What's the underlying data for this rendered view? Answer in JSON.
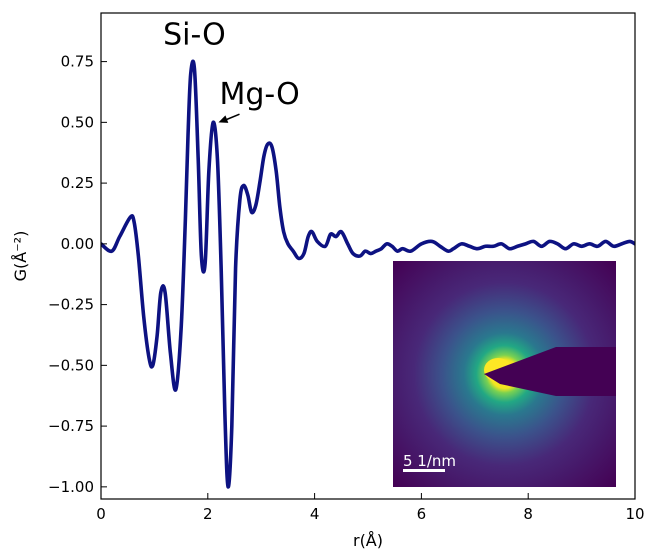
{
  "chart_data": {
    "type": "line",
    "xlabel": "r(Å)",
    "ylabel": "G(Å⁻²)",
    "xlim": [
      0,
      10
    ],
    "ylim": [
      -1.05,
      0.95
    ],
    "xticks": [
      "0",
      "2",
      "4",
      "6",
      "8",
      "10"
    ],
    "yticks": [
      "0.75",
      "0.50",
      "0.25",
      "0.00",
      "−0.25",
      "−0.50",
      "−0.75",
      "−1.00"
    ],
    "grid": false,
    "line_color": "#0d1282",
    "series": [
      {
        "x": [
          0,
          0.2,
          0.35,
          0.55,
          0.62,
          0.7,
          0.8,
          0.9,
          0.97,
          1.05,
          1.12,
          1.2,
          1.3,
          1.4,
          1.5,
          1.58,
          1.63,
          1.68,
          1.75,
          1.82,
          1.88,
          1.95,
          2.02,
          2.1,
          2.18,
          2.25,
          2.32,
          2.38,
          2.45,
          2.52,
          2.6,
          2.67,
          2.75,
          2.82,
          2.9,
          2.98,
          3.05,
          3.12,
          3.2,
          3.28,
          3.35,
          3.42,
          3.5,
          3.6,
          3.7,
          3.8,
          3.88,
          3.95,
          4.05,
          4.2,
          4.3,
          4.4,
          4.5,
          4.62,
          4.72,
          4.85,
          4.95,
          5.05,
          5.15,
          5.25,
          5.35,
          5.45,
          5.55,
          5.65,
          5.8,
          6.0,
          6.2,
          6.35,
          6.5,
          6.6,
          6.75,
          6.9,
          7.05,
          7.2,
          7.35,
          7.5,
          7.65,
          7.8,
          7.95,
          8.1,
          8.25,
          8.4,
          8.55,
          8.7,
          8.85,
          9.0,
          9.15,
          9.3,
          9.45,
          9.6,
          9.75,
          9.9,
          10.0
        ],
        "y": [
          0.0,
          -0.03,
          0.03,
          0.11,
          0.09,
          -0.05,
          -0.3,
          -0.47,
          -0.5,
          -0.38,
          -0.2,
          -0.2,
          -0.45,
          -0.6,
          -0.35,
          0.1,
          0.45,
          0.7,
          0.72,
          0.35,
          -0.05,
          -0.08,
          0.3,
          0.5,
          0.35,
          -0.1,
          -0.7,
          -1.0,
          -0.75,
          -0.1,
          0.18,
          0.24,
          0.2,
          0.13,
          0.16,
          0.26,
          0.36,
          0.41,
          0.4,
          0.3,
          0.15,
          0.05,
          0.0,
          -0.03,
          -0.06,
          -0.04,
          0.03,
          0.05,
          0.01,
          -0.01,
          0.04,
          0.03,
          0.05,
          0.0,
          -0.04,
          -0.05,
          -0.03,
          -0.04,
          -0.03,
          -0.02,
          0.0,
          -0.01,
          -0.03,
          -0.02,
          -0.03,
          0.0,
          0.01,
          -0.01,
          -0.03,
          -0.02,
          0.0,
          -0.01,
          -0.02,
          -0.01,
          -0.01,
          0.0,
          -0.02,
          -0.01,
          0.0,
          0.01,
          -0.01,
          0.01,
          0.0,
          -0.02,
          0.0,
          -0.01,
          0.0,
          -0.01,
          0.01,
          -0.01,
          0.0,
          0.01,
          0.0
        ]
      }
    ],
    "annotations": [
      {
        "text": "Si-O",
        "x": 1.75,
        "y": 0.82
      },
      {
        "text": "Mg-O",
        "x": 2.5,
        "y": 0.62,
        "arrow_to_x": 2.2,
        "arrow_to_y": 0.5
      }
    ],
    "inset": {
      "description_type": "diffraction-pattern",
      "colors": [
        "#460b58",
        "#3b528b",
        "#21918c",
        "#5ec962",
        "#fde725"
      ],
      "scale_bar_label": "5 1/nm"
    }
  }
}
